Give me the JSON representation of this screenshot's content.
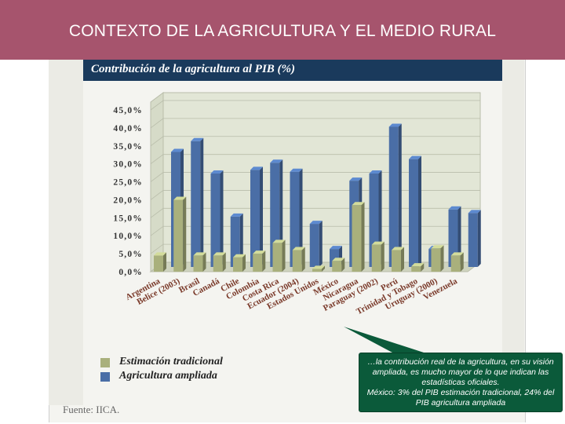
{
  "slide": {
    "title": "CONTEXTO DE LA AGRICULTURA Y EL MEDIO RURAL",
    "source": "Fuente: IICA."
  },
  "callout": {
    "line1": "…la contribución real de la agricultura, en su visión ampliada, es mucho mayor de lo que indican las estadísticas oficiales.",
    "line2": "México: 3% del PIB estimación tradicional, 24% del PIB agricultura ampliada"
  },
  "colors": {
    "header": "#a6546d",
    "traditional": "#a9b07c",
    "expanded": "#4a6ea6",
    "title_bar": "#1a3a5c",
    "callout": "#0b5a3a"
  },
  "chart_data": {
    "type": "bar",
    "title": "Contribución de la agricultura al PIB (%)",
    "categories": [
      "Argentina",
      "Belice (2003)",
      "Brasil",
      "Canadá",
      "Chile",
      "Colombia",
      "Costa Rica",
      "Ecuador (2004)",
      "Estados Unidos",
      "México",
      "Nicaragua",
      "Paraguay (2002)",
      "Perú",
      "Trinidad y Tobago",
      "Uruguay (2000)",
      "Venezuela"
    ],
    "y_ticks": [
      "45,0%",
      "40,0%",
      "35,0%",
      "30,0%",
      "25,0%",
      "20,0%",
      "15,0%",
      "10,0%",
      "5,0%",
      "0,0%"
    ],
    "ylim": [
      0,
      45
    ],
    "series": [
      {
        "name": "Estimación tradicional",
        "values": [
          4.5,
          20,
          4.5,
          4.5,
          4.0,
          5.0,
          8.0,
          6.0,
          0.8,
          3.0,
          18.5,
          7.5,
          6.0,
          1.5,
          6.5,
          4.5
        ]
      },
      {
        "name": "Agricultura ampliada",
        "values": [
          32.0,
          35.0,
          26.0,
          14.0,
          27.0,
          29.0,
          26.5,
          12.0,
          5.0,
          24.0,
          26.0,
          39.0,
          30.0,
          5.0,
          16.0,
          15.0
        ]
      }
    ],
    "grid": true,
    "legend_position": "bottom-left"
  }
}
